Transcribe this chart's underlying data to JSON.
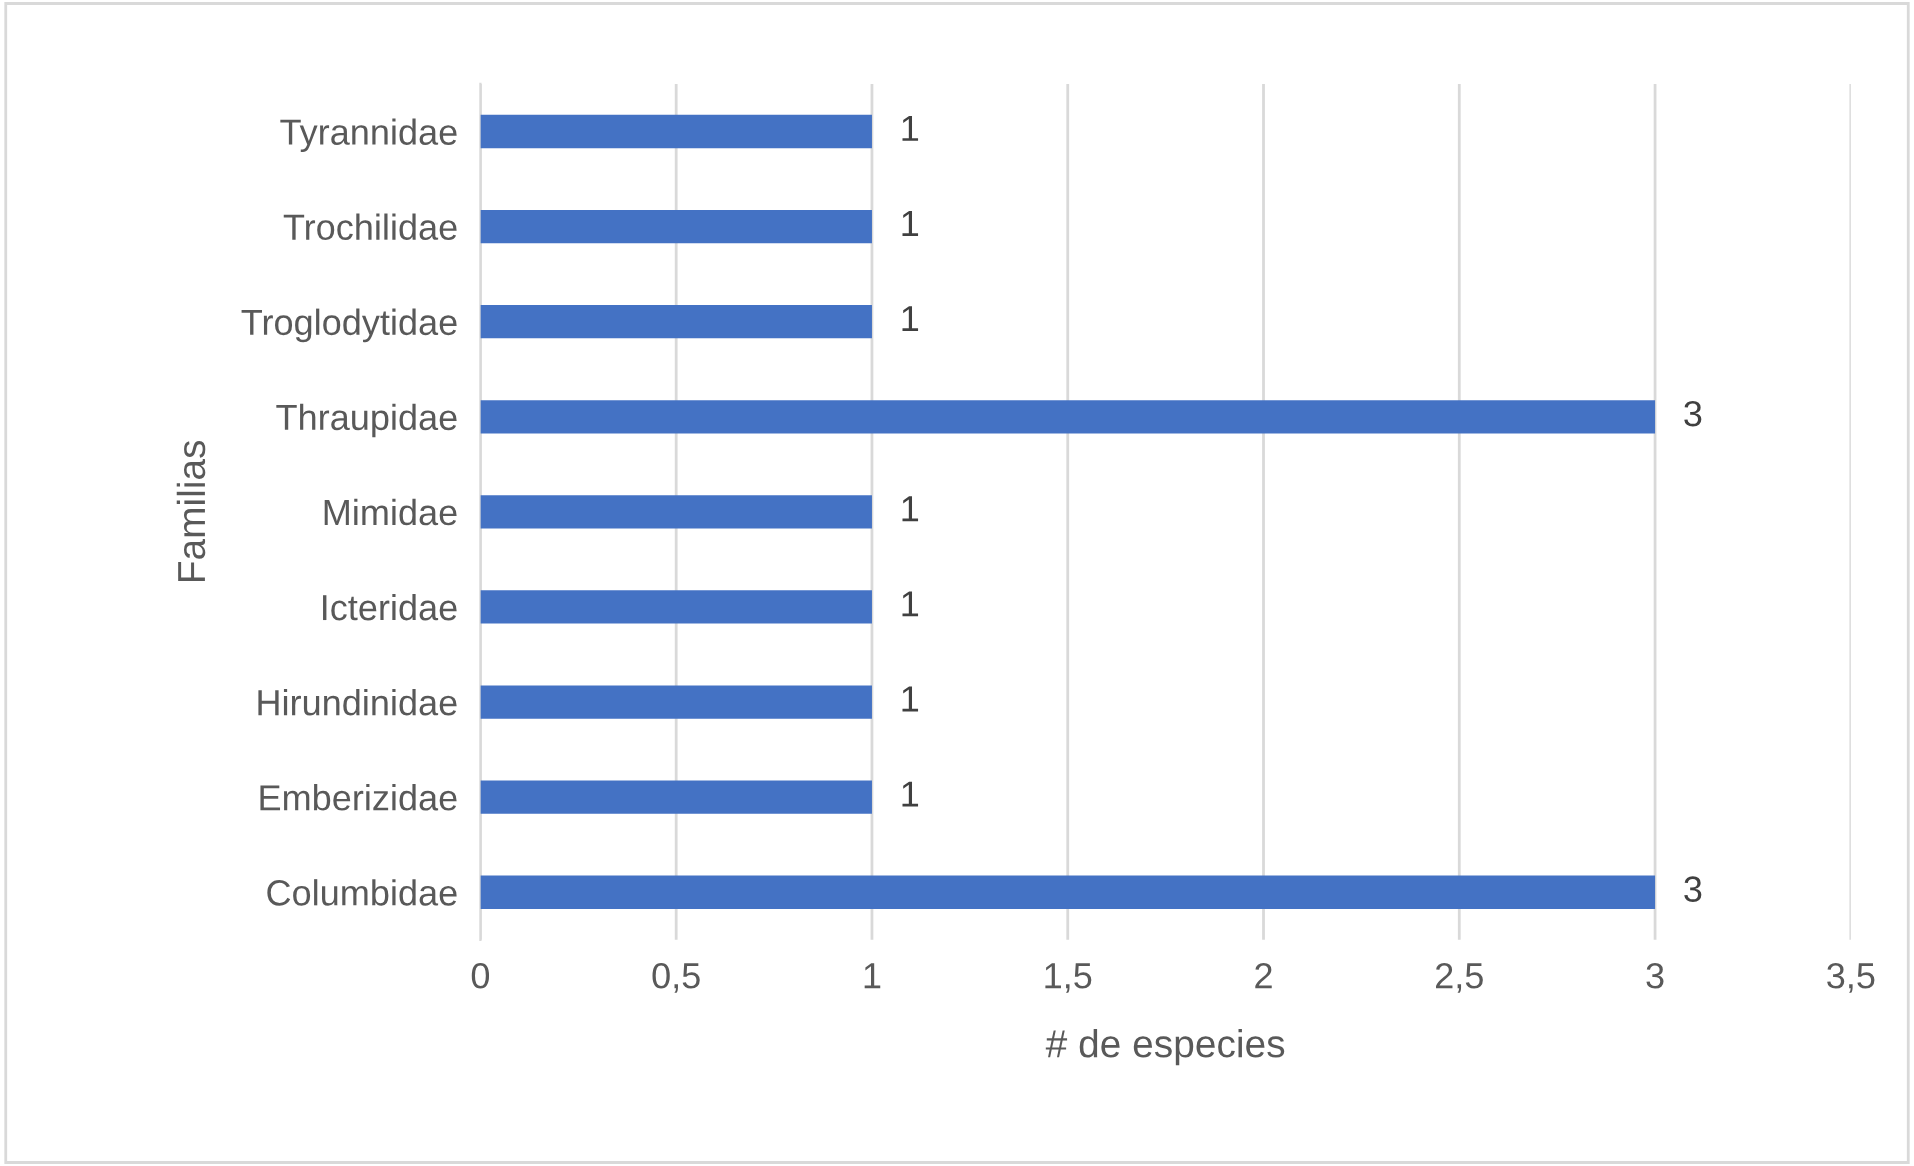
{
  "chart_data": {
    "type": "bar",
    "orientation": "horizontal",
    "xlabel": "# de especies",
    "ylabel": "Familias",
    "categories": [
      "Tyrannidae",
      "Trochilidae",
      "Troglodytidae",
      "Thraupidae",
      "Mimidae",
      "Icteridae",
      "Hirundinidae",
      "Emberizidae",
      "Columbidae"
    ],
    "values": [
      1,
      1,
      1,
      3,
      1,
      1,
      1,
      1,
      3
    ],
    "color": "#4472c4",
    "xlim": [
      0,
      3.5
    ],
    "xticks": [
      0,
      {
        "value": 0.5,
        "label": "0,5"
      },
      1,
      {
        "value": 1.5,
        "label": "1,5"
      },
      2,
      {
        "value": 2.5,
        "label": "2,5"
      },
      3,
      {
        "value": 3.5,
        "label": "3,5"
      }
    ],
    "grid": "x",
    "data_labels": true,
    "legend": false
  }
}
